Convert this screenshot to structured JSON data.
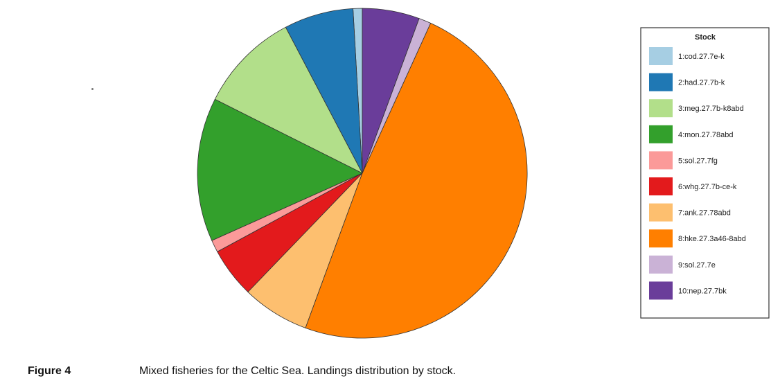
{
  "chart_data": {
    "type": "pie",
    "legend_title": "Stock",
    "legend_position": "right",
    "slices": [
      {
        "label": "1:cod.27.7e-k",
        "value": 0.9,
        "color": "#a6cee3"
      },
      {
        "label": "2:had.27.7b-k",
        "value": 6.8,
        "color": "#1f78b4"
      },
      {
        "label": "3:meg.27.7b-k8abd",
        "value": 9.9,
        "color": "#b2df8a"
      },
      {
        "label": "4:mon.27.78abd",
        "value": 14.1,
        "color": "#33a02c"
      },
      {
        "label": "5:sol.27.7fg",
        "value": 1.2,
        "color": "#fb9a99"
      },
      {
        "label": "6:whg.27.7b-ce-k",
        "value": 4.9,
        "color": "#e31a1c"
      },
      {
        "label": "7:ank.27.78abd",
        "value": 6.6,
        "color": "#fdbf6f"
      },
      {
        "label": "8:hke.27.3a46-8abd",
        "value": 48.8,
        "color": "#ff7f00"
      },
      {
        "label": "9:sol.27.7e",
        "value": 1.2,
        "color": "#cab2d6"
      },
      {
        "label": "10:nep.27.7bk",
        "value": 5.6,
        "color": "#6a3d9a"
      }
    ]
  },
  "caption": {
    "label": "Figure 4",
    "text": "Mixed fisheries for the Celtic Sea. Landings distribution by stock."
  }
}
